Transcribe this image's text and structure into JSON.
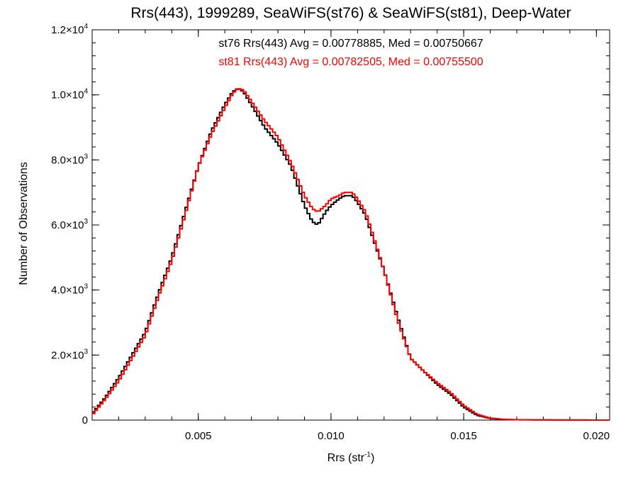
{
  "chart_data": {
    "type": "line",
    "title": "Rrs(443), 1999289, SeaWiFS(st76) & SeaWiFS(st81), Deep-Water",
    "xlabel": "Rrs (str",
    "xlabel_sup": "-1",
    "xlabel_suffix": ")",
    "ylabel": "Number of Observations",
    "xlim": [
      0.001,
      0.0205
    ],
    "ylim": [
      0,
      12000
    ],
    "xticks": [
      {
        "value": 0.005,
        "label": "0.005"
      },
      {
        "value": 0.01,
        "label": "0.010"
      },
      {
        "value": 0.015,
        "label": "0.015"
      },
      {
        "value": 0.02,
        "label": "0.020"
      }
    ],
    "yticks": [
      {
        "value": 0,
        "label": "0",
        "exp": ""
      },
      {
        "value": 2000,
        "label": "2.0×10",
        "exp": "3"
      },
      {
        "value": 4000,
        "label": "4.0×10",
        "exp": "3"
      },
      {
        "value": 6000,
        "label": "6.0×10",
        "exp": "3"
      },
      {
        "value": 8000,
        "label": "8.0×10",
        "exp": "3"
      },
      {
        "value": 10000,
        "label": "1.0×10",
        "exp": "4"
      },
      {
        "value": 12000,
        "label": "1.2×10",
        "exp": "4"
      }
    ],
    "annotations": [
      "st76 Rrs(443) Avg = 0.00778885, Med = 0.00750667",
      "st81 Rrs(443) Avg = 0.00782505, Med = 0.00755500"
    ],
    "grid": false,
    "series": [
      {
        "name": "st76",
        "color": "#000000",
        "x": [
          0.001,
          0.0015,
          0.002,
          0.0025,
          0.003,
          0.0035,
          0.004,
          0.0045,
          0.005,
          0.0055,
          0.006,
          0.0063,
          0.0065,
          0.0067,
          0.007,
          0.0075,
          0.008,
          0.0085,
          0.009,
          0.0093,
          0.0095,
          0.0098,
          0.01,
          0.0103,
          0.0105,
          0.0108,
          0.011,
          0.0113,
          0.0115,
          0.012,
          0.0125,
          0.013,
          0.0135,
          0.014,
          0.0145,
          0.015,
          0.0155,
          0.016,
          0.0165,
          0.017,
          0.018,
          0.019,
          0.02,
          0.0205
        ],
        "y": [
          200,
          700,
          1300,
          2000,
          2700,
          3900,
          5000,
          6400,
          7800,
          8900,
          9700,
          10100,
          10200,
          10100,
          9700,
          9000,
          8500,
          7800,
          6600,
          6100,
          6000,
          6400,
          6600,
          6800,
          6900,
          6900,
          6700,
          6300,
          5800,
          4600,
          3200,
          1900,
          1500,
          1100,
          800,
          400,
          150,
          50,
          20,
          10,
          5,
          2,
          1,
          0
        ]
      },
      {
        "name": "st81",
        "color": "#ff0000",
        "x": [
          0.001,
          0.0015,
          0.002,
          0.0025,
          0.003,
          0.0035,
          0.004,
          0.0045,
          0.005,
          0.0055,
          0.006,
          0.0063,
          0.0065,
          0.0067,
          0.007,
          0.0075,
          0.008,
          0.0085,
          0.009,
          0.0093,
          0.0095,
          0.0098,
          0.01,
          0.0103,
          0.0105,
          0.0108,
          0.011,
          0.0113,
          0.0115,
          0.012,
          0.0125,
          0.013,
          0.0135,
          0.014,
          0.0145,
          0.015,
          0.0155,
          0.016,
          0.0165,
          0.017,
          0.018,
          0.019,
          0.02,
          0.0205
        ],
        "y": [
          150,
          650,
          1200,
          1900,
          2600,
          3800,
          4900,
          6300,
          7800,
          8800,
          9600,
          10050,
          10200,
          10150,
          9800,
          9200,
          8700,
          7900,
          6900,
          6500,
          6400,
          6600,
          6800,
          6900,
          7000,
          7000,
          6800,
          6400,
          5900,
          4600,
          3100,
          1900,
          1500,
          1150,
          850,
          450,
          180,
          60,
          25,
          12,
          6,
          3,
          1,
          0
        ]
      }
    ]
  }
}
